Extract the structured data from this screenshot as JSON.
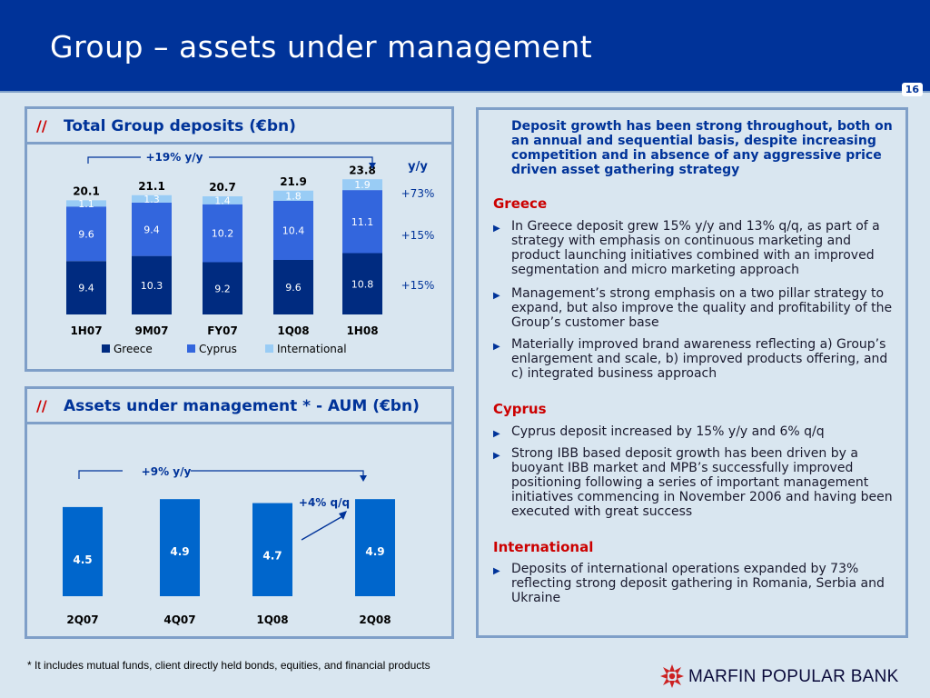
{
  "slide": {
    "title": "Group – assets under management",
    "page_number": "16",
    "footnote": "* It includes mutual funds, client directly held bonds, equities, and financial products",
    "logo_text": "MARFIN POPULAR BANK"
  },
  "colors": {
    "header": "#003399",
    "greece": "#002b80",
    "cyprus": "#3366dd",
    "international": "#99ccf5",
    "aum_bar": "#0066cc",
    "accent_red": "#cc0000",
    "panel_border": "#7f9fc8"
  },
  "deposits_panel": {
    "slashes": "//",
    "title": "Total Group deposits (€bn)",
    "growth_label": "+19% y/y",
    "yy_header": "y/y",
    "yy_values": [
      "+73%",
      "+15%",
      "+15%"
    ],
    "legend": [
      "Greece",
      "Cyprus",
      "International"
    ]
  },
  "aum_panel": {
    "slashes": "//",
    "title": "Assets under management * - AUM (€bn)",
    "growth_label": "+9% y/y",
    "qq_label": "+4% q/q"
  },
  "chart_data": [
    {
      "type": "bar",
      "stacked": true,
      "title": "Total Group deposits (€bn)",
      "categories": [
        "1H07",
        "9M07",
        "FY07",
        "1Q08",
        "1H08"
      ],
      "series": [
        {
          "name": "Greece",
          "values": [
            9.4,
            10.3,
            9.2,
            9.6,
            10.8
          ]
        },
        {
          "name": "Cyprus",
          "values": [
            9.6,
            9.4,
            10.2,
            10.4,
            11.1
          ]
        },
        {
          "name": "International",
          "values": [
            1.1,
            1.3,
            1.4,
            1.8,
            1.9
          ]
        }
      ],
      "totals": [
        "20.1",
        "21.1",
        "20.7",
        "21.9",
        "23.8"
      ],
      "ylim": [
        0,
        25
      ],
      "legend": "bottom",
      "grid": false
    },
    {
      "type": "bar",
      "title": "Assets under management * - AUM (€bn)",
      "categories": [
        "2Q07",
        "4Q07",
        "1Q08",
        "2Q08"
      ],
      "values": [
        4.5,
        4.9,
        4.7,
        4.9
      ],
      "ylim": [
        0,
        5.5
      ],
      "grid": false
    }
  ],
  "commentary": {
    "intro": "Deposit growth has been strong throughout, both on an annual and sequential basis, despite increasing competition and in absence of any aggressive price driven asset gathering strategy",
    "sections": [
      {
        "heading": "Greece",
        "bullets": [
          "In Greece deposit grew 15% y/y and 13% q/q, as part of a strategy with emphasis on continuous marketing and product launching initiatives combined  with an improved segmentation and micro marketing approach",
          "Management’s strong emphasis on a two pillar strategy to expand, but also improve the quality and profitability of the Group’s customer base",
          "Materially improved brand awareness reflecting a) Group’s enlargement and scale, b) improved products offering, and c) integrated business approach"
        ]
      },
      {
        "heading": "Cyprus",
        "bullets": [
          "Cyprus deposit increased by 15% y/y and 6% q/q",
          "Strong IBB based deposit growth has been driven by a buoyant IBB market and MPB’s successfully improved positioning following a series of important management initiatives commencing in November 2006 and having been executed with great success"
        ]
      },
      {
        "heading": "International",
        "bullets": [
          "Deposits of international operations expanded by 73% reflecting strong deposit gathering in Romania, Serbia and Ukraine"
        ]
      }
    ]
  }
}
